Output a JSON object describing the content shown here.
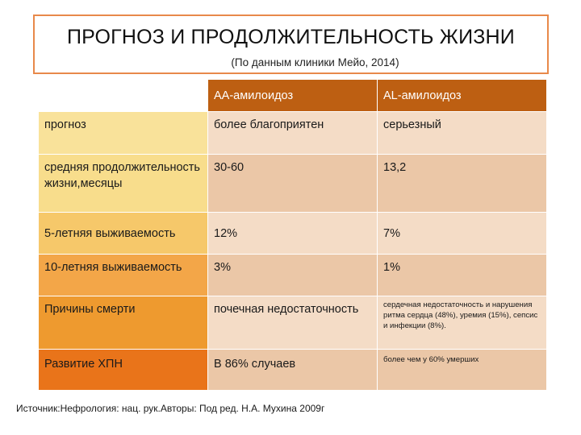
{
  "header": {
    "title": "ПРОГНОЗ И ПРОДОЛЖИТЕЛЬНОСТЬ ЖИЗНИ",
    "subtitle": "(По данным клиники Мейо, 2014)"
  },
  "table": {
    "columns": [
      "",
      "АА-амилоидоз",
      "AL-амилоидоз"
    ],
    "rows": [
      {
        "label": "прогноз",
        "aa": "более благоприятен",
        "al": "серьезный",
        "aa_small": false,
        "al_small": false
      },
      {
        "label": "средняя продолжительность жизни,месяцы",
        "aa": "30-60",
        "al": "13,2",
        "aa_small": false,
        "al_small": false
      },
      {
        "label": "5-летняя выживаемость",
        "aa": "12%",
        "al": "7%",
        "aa_small": false,
        "al_small": false
      },
      {
        "label": "10-летняя выживаемость",
        "aa": "3%",
        "al": "1%",
        "aa_small": false,
        "al_small": false
      },
      {
        "label": "Причины смерти",
        "aa": "почечная недостаточность",
        "al": "сердечная недостаточность и нарушения ритма сердца (48%), уремия (15%), сепсис и инфекции (8%).",
        "aa_small": false,
        "al_small": true
      },
      {
        "label": "Развитие ХПН",
        "aa": "В 86% случаев",
        "al": "более чем у 60% умерших",
        "aa_small": false,
        "al_small": true
      }
    ]
  },
  "source": "Источник:Нефрология: нац. рук.Авторы: Под ред. Н.А. Мухина 2009г",
  "colors": {
    "border": "#e8894a",
    "header_bg": "#bd5f12",
    "row_label_bg": [
      "#f9e29a",
      "#f8dd8c",
      "#f6c86a",
      "#f3a648",
      "#ee9a2f",
      "#e9741a"
    ],
    "row_value_bg": [
      "#f4dcc6",
      "#ebc7a7",
      "#f4dcc6",
      "#ebc7a7",
      "#f4dcc6",
      "#ebc7a7"
    ]
  }
}
